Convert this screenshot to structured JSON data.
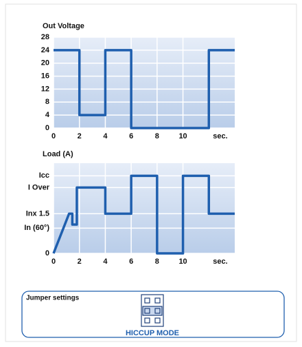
{
  "chart_data": [
    {
      "type": "line",
      "title": "Out Voltage",
      "color": "#1f5fae",
      "x": [
        0,
        2,
        2,
        4,
        4,
        6,
        6,
        12,
        12,
        14
      ],
      "values": [
        24,
        24,
        4,
        4,
        24,
        24,
        0,
        0,
        24,
        24
      ],
      "xlim": [
        0,
        14
      ],
      "xticks": [
        0,
        2,
        4,
        6,
        8,
        10
      ],
      "x_label": "sec.",
      "ylim": [
        0,
        28
      ],
      "yticks": [
        0,
        4,
        8,
        12,
        16,
        20,
        24,
        28
      ],
      "grid": true
    },
    {
      "type": "line",
      "title": "Load (A)",
      "color": "#1f5fae",
      "x": [
        0,
        1.2,
        1.45,
        1.45,
        1.8,
        1.8,
        4,
        4,
        6,
        6,
        8,
        8,
        10,
        10,
        12,
        12,
        14
      ],
      "values": [
        0,
        4.4,
        4.4,
        3.2,
        3.2,
        7.3,
        7.3,
        4.4,
        4.4,
        8.6,
        8.6,
        0,
        0,
        8.6,
        8.6,
        4.4,
        4.4
      ],
      "xlim": [
        0,
        14
      ],
      "xticks": [
        0,
        2,
        4,
        6,
        8,
        10
      ],
      "x_label": "sec.",
      "ylim": [
        0,
        10
      ],
      "yticks": [
        0,
        {
          "value": 2.8,
          "label": "In (60°)"
        },
        {
          "value": 4.4,
          "label": "Inx 1.5"
        },
        {
          "value": 7.3,
          "label": "I Over"
        },
        {
          "value": 8.6,
          "label": "Icc"
        }
      ],
      "grid": true
    }
  ],
  "jumper": {
    "title": "Jumper settings",
    "mode": "HICCUP MODE"
  }
}
